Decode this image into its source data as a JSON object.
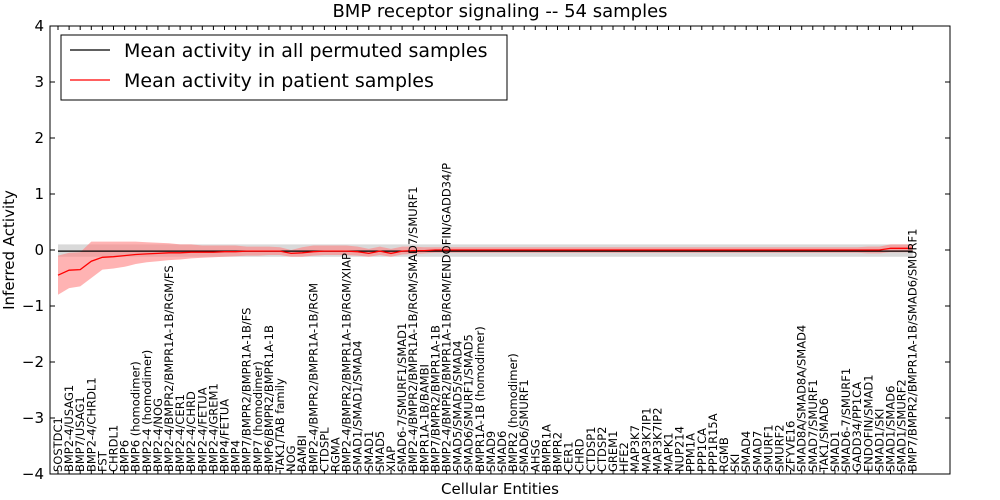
{
  "chart_data": {
    "type": "line",
    "title": "BMP receptor signaling -- 54 samples",
    "xlabel": "Cellular Entities",
    "ylabel": "Inferred Activity",
    "ylim": [
      -4,
      4
    ],
    "yticks": [
      -4,
      -3,
      -2,
      -1,
      0,
      1,
      2,
      3,
      4
    ],
    "ytick_labels": [
      "−4",
      "−3",
      "−2",
      "−1",
      "0",
      "1",
      "2",
      "3",
      "4"
    ],
    "legend_position": "top-left",
    "colors": {
      "permuted_line": "#000000",
      "permuted_band": "#bfbfbf",
      "patient_line": "#ff0000",
      "patient_band": "#ff8080"
    },
    "categories": [
      "SOSTDC1",
      "BMP2-4/USAG1",
      "BMP7/USAG1",
      "BMP2-4/CHRDL1",
      "FST",
      "CHRDL1",
      "BMP6",
      "BMP6 (homodimer)",
      "BMP2-4 (homodimer)",
      "BMP2-4/NOG",
      "BMP2-4/BMPR2/BMPR1A-1B/RGM/FS",
      "BMP2-4/CER1",
      "BMP2-4/CHRD",
      "BMP2-4/FETUA",
      "BMP2-4/GREM1",
      "BMP4/FETUA",
      "BMP4",
      "BMP7/BMPR2/BMPR1A-1B/FS",
      "BMP7 (homodimer)",
      "BMP6/BMPR2/BMPR1A-1B",
      "TAK1/TAB family",
      "NOG",
      "BAMBI",
      "BMP2-4/BMPR2/BMPR1A-1B/RGM",
      "CTDSPL",
      "RGMA",
      "BMP2-4/BMPR2/BMPR1A-1B/RGM/XIAP",
      "SMAD1/SMAD1/SMAD4",
      "SMAD1",
      "SMAD5",
      "XIAP",
      "SMAD6-7/SMURF1/SMAD1",
      "BMP2-4/BMPR2/BMPR1A-1B/RGM/SMAD7/SMURF1",
      "BMPR1A-1B/BAMBI",
      "BMP7/BMPR2/BMPR1A-1B",
      "BMP2-4/BMPR2/BMPR1A-1B/RGM/ENDOFIN/GADD34/P",
      "SMAD5/SMAD5/SMAD4",
      "SMAD6/SMURF1/SMAD5",
      "BMPR1A-1B (homodimer)",
      "SMAD9",
      "SMAD6",
      "BMPR2 (homodimer)",
      "SMAD6/SMURF1",
      "AHSG",
      "BMPR1A",
      "BMPR2",
      "CER1",
      "CHRD",
      "CTDSP1",
      "CTDSP2",
      "GREM1",
      "HFE2",
      "MAP3K7",
      "MAP3K7IP1",
      "MAP3K7IP2",
      "MAPK1",
      "NUP214",
      "PPM1A",
      "PPP1CA",
      "PPP1R15A",
      "RGMB",
      "SKI",
      "SMAD4",
      "SMAD7",
      "SMURF1",
      "SMURF2",
      "ZFYVE16",
      "SMAD8A/SMAD8A/SMAD4",
      "SMAD7/SMURF1",
      "TAK1/SMAD6",
      "SMAD1",
      "SMAD6-7/SMURF1",
      "GADD34/PP1CA",
      "ENDOFIN/SMAD1",
      "SMAD1/SKI",
      "SMAD1/SMAD6",
      "SMAD1/SMURF2",
      "BMP7/BMPR2/BMPR1A-1B/SMAD6/SMURF1"
    ],
    "series": [
      {
        "name": "Mean activity in all permuted samples",
        "mean": [
          -0.02,
          -0.02,
          -0.02,
          -0.02,
          -0.02,
          -0.02,
          -0.02,
          -0.02,
          -0.02,
          -0.02,
          -0.02,
          -0.02,
          -0.02,
          -0.02,
          -0.02,
          -0.02,
          -0.02,
          -0.02,
          -0.02,
          -0.02,
          -0.02,
          -0.02,
          -0.02,
          -0.02,
          -0.02,
          -0.02,
          -0.02,
          -0.02,
          -0.02,
          -0.02,
          -0.02,
          -0.02,
          -0.02,
          -0.02,
          -0.02,
          -0.02,
          -0.02,
          -0.02,
          -0.02,
          -0.02,
          -0.02,
          -0.02,
          -0.02,
          -0.02,
          -0.02,
          -0.02,
          -0.02,
          -0.02,
          -0.02,
          -0.02,
          -0.02,
          -0.02,
          -0.02,
          -0.02,
          -0.02,
          -0.02,
          -0.02,
          -0.02,
          -0.02,
          -0.02,
          -0.02,
          -0.02,
          -0.02,
          -0.02,
          -0.02,
          -0.02,
          -0.02,
          -0.02,
          -0.02,
          -0.02,
          -0.02,
          -0.02,
          -0.02,
          -0.02,
          -0.02,
          -0.02,
          -0.02,
          -0.02
        ],
        "upper": [
          0.1,
          0.1,
          0.1,
          0.1,
          0.1,
          0.1,
          0.1,
          0.1,
          0.1,
          0.1,
          0.1,
          0.1,
          0.1,
          0.1,
          0.1,
          0.1,
          0.1,
          0.1,
          0.1,
          0.1,
          0.1,
          0.1,
          0.1,
          0.1,
          0.1,
          0.1,
          0.1,
          0.1,
          0.1,
          0.1,
          0.1,
          0.1,
          0.1,
          0.1,
          0.1,
          0.1,
          0.1,
          0.1,
          0.1,
          0.1,
          0.1,
          0.1,
          0.1,
          0.1,
          0.1,
          0.1,
          0.1,
          0.1,
          0.1,
          0.1,
          0.1,
          0.1,
          0.1,
          0.1,
          0.1,
          0.1,
          0.1,
          0.1,
          0.1,
          0.1,
          0.1,
          0.1,
          0.1,
          0.1,
          0.1,
          0.1,
          0.1,
          0.1,
          0.1,
          0.1,
          0.1,
          0.1,
          0.1,
          0.1,
          0.1,
          0.1,
          0.1,
          0.1
        ],
        "lower": [
          -0.12,
          -0.12,
          -0.12,
          -0.12,
          -0.12,
          -0.12,
          -0.12,
          -0.12,
          -0.12,
          -0.12,
          -0.12,
          -0.12,
          -0.12,
          -0.12,
          -0.12,
          -0.12,
          -0.12,
          -0.12,
          -0.12,
          -0.12,
          -0.12,
          -0.12,
          -0.12,
          -0.12,
          -0.12,
          -0.12,
          -0.12,
          -0.12,
          -0.12,
          -0.12,
          -0.12,
          -0.12,
          -0.12,
          -0.12,
          -0.12,
          -0.12,
          -0.12,
          -0.12,
          -0.12,
          -0.12,
          -0.12,
          -0.12,
          -0.12,
          -0.12,
          -0.12,
          -0.12,
          -0.12,
          -0.12,
          -0.12,
          -0.12,
          -0.12,
          -0.12,
          -0.12,
          -0.12,
          -0.12,
          -0.12,
          -0.12,
          -0.12,
          -0.12,
          -0.12,
          -0.12,
          -0.12,
          -0.12,
          -0.12,
          -0.12,
          -0.12,
          -0.12,
          -0.12,
          -0.12,
          -0.12,
          -0.12,
          -0.12,
          -0.12,
          -0.12,
          -0.12,
          -0.12,
          -0.12,
          -0.12
        ]
      },
      {
        "name": "Mean activity in patient samples",
        "mean": [
          -0.45,
          -0.36,
          -0.35,
          -0.2,
          -0.13,
          -0.12,
          -0.1,
          -0.08,
          -0.07,
          -0.06,
          -0.05,
          -0.05,
          -0.04,
          -0.04,
          -0.04,
          -0.03,
          -0.03,
          -0.02,
          -0.02,
          -0.02,
          -0.02,
          -0.06,
          -0.05,
          -0.03,
          -0.02,
          -0.02,
          -0.02,
          -0.03,
          -0.06,
          -0.02,
          -0.06,
          -0.02,
          -0.01,
          -0.01,
          0.0,
          0.0,
          0.0,
          0.0,
          0.0,
          0.0,
          0.0,
          0.0,
          0.0,
          0.0,
          0.0,
          0.0,
          0.0,
          0.0,
          0.0,
          0.0,
          0.0,
          0.0,
          0.0,
          0.0,
          0.0,
          0.0,
          0.0,
          0.0,
          0.0,
          0.0,
          0.0,
          0.0,
          0.0,
          0.0,
          0.0,
          0.0,
          0.0,
          0.0,
          0.0,
          0.0,
          0.0,
          0.0,
          0.0,
          0.0,
          0.0,
          0.03,
          0.03,
          0.03
        ],
        "upper": [
          -0.1,
          -0.05,
          -0.04,
          0.15,
          0.15,
          0.15,
          0.15,
          0.15,
          0.14,
          0.13,
          0.12,
          0.1,
          0.1,
          0.08,
          0.08,
          0.08,
          0.08,
          0.06,
          0.06,
          0.06,
          0.05,
          0.0,
          0.05,
          0.08,
          0.08,
          0.08,
          0.08,
          0.06,
          0.02,
          0.06,
          0.02,
          0.06,
          0.06,
          0.05,
          0.05,
          0.05,
          0.05,
          0.05,
          0.05,
          0.05,
          0.05,
          0.05,
          0.05,
          0.05,
          0.05,
          0.05,
          0.05,
          0.05,
          0.05,
          0.05,
          0.05,
          0.05,
          0.05,
          0.05,
          0.05,
          0.05,
          0.05,
          0.05,
          0.05,
          0.05,
          0.05,
          0.05,
          0.05,
          0.05,
          0.05,
          0.05,
          0.05,
          0.05,
          0.05,
          0.05,
          0.05,
          0.05,
          0.05,
          0.06,
          0.06,
          0.1,
          0.1,
          0.1
        ],
        "lower": [
          -0.8,
          -0.68,
          -0.65,
          -0.5,
          -0.35,
          -0.33,
          -0.3,
          -0.25,
          -0.22,
          -0.2,
          -0.18,
          -0.17,
          -0.15,
          -0.14,
          -0.13,
          -0.12,
          -0.11,
          -0.1,
          -0.1,
          -0.09,
          -0.09,
          -0.12,
          -0.12,
          -0.1,
          -0.09,
          -0.09,
          -0.09,
          -0.1,
          -0.12,
          -0.09,
          -0.12,
          -0.08,
          -0.07,
          -0.06,
          -0.05,
          -0.05,
          -0.05,
          -0.05,
          -0.05,
          -0.05,
          -0.05,
          -0.05,
          -0.05,
          -0.05,
          -0.05,
          -0.05,
          -0.05,
          -0.05,
          -0.05,
          -0.05,
          -0.05,
          -0.05,
          -0.05,
          -0.05,
          -0.05,
          -0.05,
          -0.05,
          -0.05,
          -0.05,
          -0.05,
          -0.05,
          -0.05,
          -0.05,
          -0.05,
          -0.05,
          -0.05,
          -0.05,
          -0.05,
          -0.05,
          -0.05,
          -0.05,
          -0.05,
          -0.05,
          -0.06,
          -0.06,
          -0.04,
          -0.04,
          -0.04
        ]
      }
    ]
  }
}
